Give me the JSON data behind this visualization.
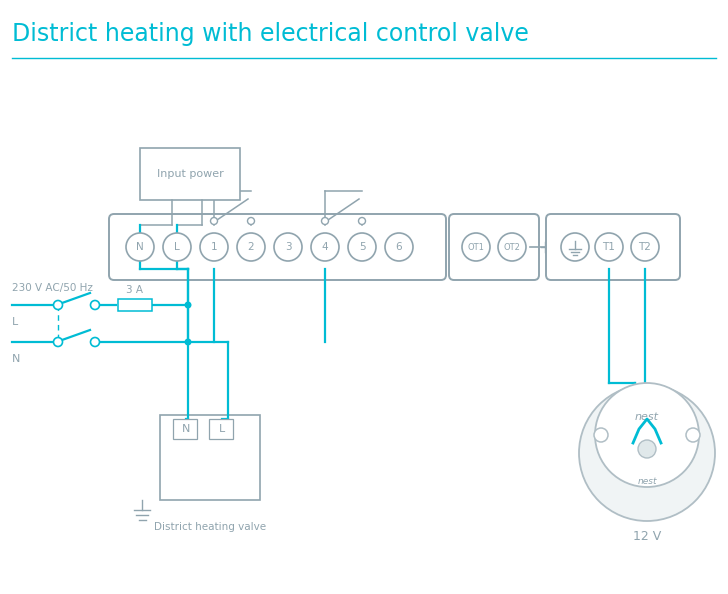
{
  "title": "District heating with electrical control valve",
  "title_color": "#00bcd4",
  "title_fontsize": 17,
  "bg_color": "#ffffff",
  "wire_color": "#00bcd4",
  "gray": "#90a4ae",
  "light_gray": "#b0bec5",
  "input_power_label": "Input power",
  "district_valve_label": "District heating valve",
  "voltage_label": "230 V AC/50 Hz",
  "fuse_label": "3 A",
  "L_label": "L",
  "N_label": "N",
  "nest_label": "nest",
  "twelve_v_label": "12 V",
  "terminal_labels": [
    "N",
    "L",
    "1",
    "2",
    "3",
    "4",
    "5",
    "6"
  ],
  "ot_labels": [
    "OT1",
    "OT2"
  ],
  "t_labels": [
    "T1",
    "T2"
  ]
}
